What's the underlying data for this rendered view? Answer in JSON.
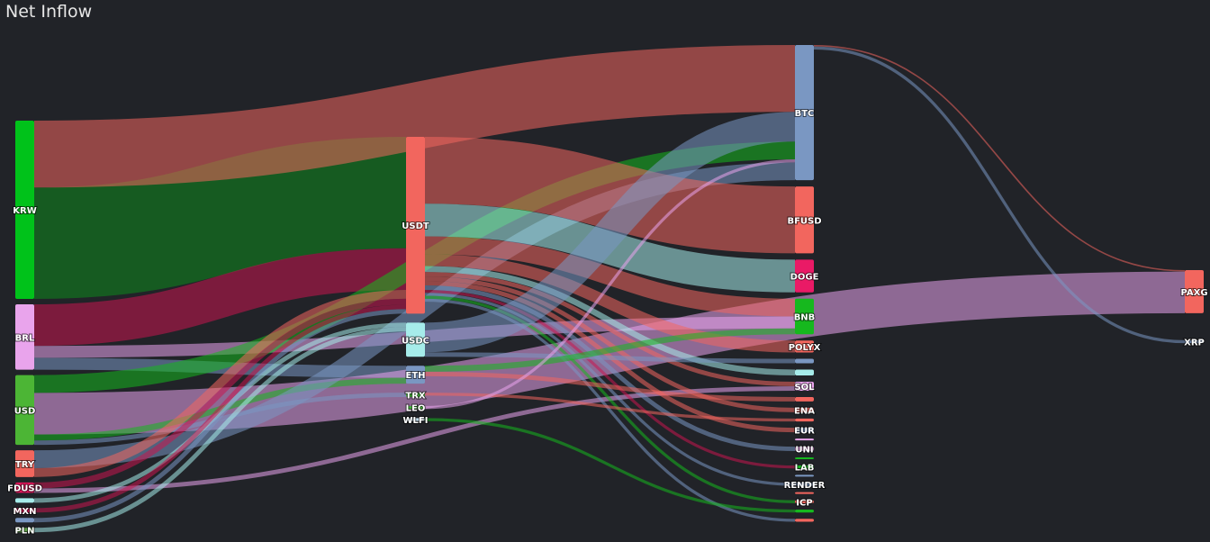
{
  "chart_data": {
    "type": "sankey",
    "title": "Net Inflow",
    "nodes": [
      {
        "id": "KRW",
        "label": "KRW",
        "column": 0,
        "color": "#00c21a"
      },
      {
        "id": "BRL",
        "label": "BRL",
        "column": 0,
        "color": "#e9a4ec"
      },
      {
        "id": "USD",
        "label": "USD",
        "column": 0,
        "color": "#4cb535"
      },
      {
        "id": "TRY",
        "label": "TRY",
        "column": 0,
        "color": "#f2665e"
      },
      {
        "id": "FDUSD",
        "label": "FDUSD",
        "column": 0,
        "color": "#e8155d"
      },
      {
        "id": "UNK_SRC",
        "label": "",
        "column": 0,
        "color": "#a6ecea"
      },
      {
        "id": "MXN",
        "label": "MXN",
        "column": 0,
        "color": "#c8154f"
      },
      {
        "id": "UNK_SRC2",
        "label": "",
        "column": 0,
        "color": "#7a97c2"
      },
      {
        "id": "PLN",
        "label": "PLN",
        "column": 0,
        "color": "#5fa048"
      },
      {
        "id": "USDT",
        "label": "USDT",
        "column": 1,
        "color": "#f2665e"
      },
      {
        "id": "USDC",
        "label": "USDC",
        "column": 1,
        "color": "#a6ecea"
      },
      {
        "id": "ETH",
        "label": "ETH",
        "column": 1,
        "color": "#7a97c2"
      },
      {
        "id": "TRX",
        "label": "TRX",
        "column": 1,
        "color": "#47b03c"
      },
      {
        "id": "LEO",
        "label": "LEO",
        "column": 1,
        "color": "#47b03c"
      },
      {
        "id": "WLFI",
        "label": "WLFI",
        "column": 1,
        "color": "#c6e0f0"
      },
      {
        "id": "BTC",
        "label": "BTC",
        "column": 2,
        "color": "#7a97c2"
      },
      {
        "id": "BFUSD",
        "label": "BFUSD",
        "column": 2,
        "color": "#f2665e"
      },
      {
        "id": "DOGE",
        "label": "DOGE",
        "column": 2,
        "color": "#ea1a66"
      },
      {
        "id": "BNB",
        "label": "BNB",
        "column": 2,
        "color": "#16b81e"
      },
      {
        "id": "POLYX",
        "label": "POLYX",
        "column": 2,
        "color": "#f2665e"
      },
      {
        "id": "C2_A",
        "label": "",
        "column": 2,
        "color": "#7a97c2"
      },
      {
        "id": "C2_B",
        "label": "",
        "column": 2,
        "color": "#a6ecea"
      },
      {
        "id": "SOL",
        "label": "SOL",
        "column": 2,
        "color": "#e9a4ec"
      },
      {
        "id": "C2_C",
        "label": "",
        "column": 2,
        "color": "#f2665e"
      },
      {
        "id": "ENA",
        "label": "ENA",
        "column": 2,
        "color": "#f2665e"
      },
      {
        "id": "C2_D",
        "label": "",
        "column": 2,
        "color": "#f2665e"
      },
      {
        "id": "EUR",
        "label": "EUR",
        "column": 2,
        "color": "#7a97c2"
      },
      {
        "id": "C2_E",
        "label": "",
        "column": 2,
        "color": "#e9a4ec"
      },
      {
        "id": "UNI",
        "label": "UNI",
        "column": 2,
        "color": "#e9a4ec"
      },
      {
        "id": "C2_F",
        "label": "",
        "column": 2,
        "color": "#16b81e"
      },
      {
        "id": "LAB",
        "label": "LAB",
        "column": 2,
        "color": "#16b81e"
      },
      {
        "id": "C2_G",
        "label": "",
        "column": 2,
        "color": "#7a97c2"
      },
      {
        "id": "RENDER",
        "label": "RENDER",
        "column": 2,
        "color": "#7a97c2"
      },
      {
        "id": "C2_H",
        "label": "",
        "column": 2,
        "color": "#f2665e"
      },
      {
        "id": "ICP",
        "label": "ICP",
        "column": 2,
        "color": "#f2665e"
      },
      {
        "id": "C2_I",
        "label": "",
        "column": 2,
        "color": "#16b81e"
      },
      {
        "id": "C2_J",
        "label": "",
        "column": 2,
        "color": "#f2665e"
      },
      {
        "id": "PAXG",
        "label": "PAXG",
        "column": 3,
        "color": "#f2665e"
      },
      {
        "id": "XRP",
        "label": "XRP",
        "column": 3,
        "color": "#7a97c2"
      }
    ],
    "links": [
      {
        "source": "KRW",
        "target": "USDT",
        "value": 75,
        "color": "#0f8a1c"
      },
      {
        "source": "KRW",
        "target": "BTC",
        "value": 45,
        "color": "#f2665e"
      },
      {
        "source": "BRL",
        "target": "USDT",
        "value": 28,
        "color": "#c8154f"
      },
      {
        "source": "BRL",
        "target": "BNB",
        "value": 8,
        "color": "#e9a4ec"
      },
      {
        "source": "BRL",
        "target": "ETH",
        "value": 8,
        "color": "#7a97c2"
      },
      {
        "source": "USD",
        "target": "PAXG",
        "value": 28,
        "color": "#e9a4ec"
      },
      {
        "source": "USD",
        "target": "BTC",
        "value": 12,
        "color": "#16b81e"
      },
      {
        "source": "USD",
        "target": "ETH",
        "value": 4,
        "color": "#16b81e"
      },
      {
        "source": "USD",
        "target": "TRX",
        "value": 3,
        "color": "#7a97c2"
      },
      {
        "source": "TRY",
        "target": "BTC",
        "value": 12,
        "color": "#7a97c2"
      },
      {
        "source": "TRY",
        "target": "USDT",
        "value": 6,
        "color": "#f2665e"
      },
      {
        "source": "FDUSD",
        "target": "USDT",
        "value": 4,
        "color": "#c8154f"
      },
      {
        "source": "FDUSD",
        "target": "SOL",
        "value": 3,
        "color": "#e9a4ec"
      },
      {
        "source": "UNK_SRC",
        "target": "USDC",
        "value": 3,
        "color": "#a6ecea"
      },
      {
        "source": "MXN",
        "target": "USDT",
        "value": 3,
        "color": "#c8154f"
      },
      {
        "source": "UNK_SRC2",
        "target": "USDT",
        "value": 3,
        "color": "#7a97c2"
      },
      {
        "source": "PLN",
        "target": "USDC",
        "value": 3,
        "color": "#a6ecea"
      },
      {
        "source": "USDT",
        "target": "BFUSD",
        "value": 45,
        "color": "#f2665e"
      },
      {
        "source": "USDT",
        "target": "DOGE",
        "value": 22,
        "color": "#a6ecea"
      },
      {
        "source": "USDT",
        "target": "BNB",
        "value": 12,
        "color": "#f2665e"
      },
      {
        "source": "USDT",
        "target": "POLYX",
        "value": 8,
        "color": "#f2665e"
      },
      {
        "source": "USDT",
        "target": "C2_B",
        "value": 4,
        "color": "#a6ecea"
      },
      {
        "source": "USDT",
        "target": "SOL",
        "value": 3,
        "color": "#f2665e"
      },
      {
        "source": "USDT",
        "target": "ENA",
        "value": 3,
        "color": "#f2665e"
      },
      {
        "source": "USDT",
        "target": "EUR",
        "value": 3,
        "color": "#f2665e"
      },
      {
        "source": "USDT",
        "target": "UNI",
        "value": 3,
        "color": "#7a97c2"
      },
      {
        "source": "USDT",
        "target": "LAB",
        "value": 2,
        "color": "#c8154f"
      },
      {
        "source": "USDT",
        "target": "RENDER",
        "value": 2,
        "color": "#7a97c2"
      },
      {
        "source": "USDT",
        "target": "ICP",
        "value": 2,
        "color": "#16b81e"
      },
      {
        "source": "USDT",
        "target": "C2_J",
        "value": 2,
        "color": "#7a97c2"
      },
      {
        "source": "USDC",
        "target": "BTC",
        "value": 20,
        "color": "#7a97c2"
      },
      {
        "source": "USDC",
        "target": "C2_A",
        "value": 3,
        "color": "#7a97c2"
      },
      {
        "source": "ETH",
        "target": "BNB",
        "value": 4,
        "color": "#16b81e"
      },
      {
        "source": "ETH",
        "target": "C2_C",
        "value": 3,
        "color": "#f2665e"
      },
      {
        "source": "TRX",
        "target": "C2_D",
        "value": 2,
        "color": "#f2665e"
      },
      {
        "source": "LEO",
        "target": "BTC",
        "value": 2,
        "color": "#e9a4ec"
      },
      {
        "source": "WLFI",
        "target": "C2_I",
        "value": 2,
        "color": "#16b81e"
      },
      {
        "source": "BTC",
        "target": "PAXG",
        "value": 1,
        "color": "#f2665e"
      },
      {
        "source": "BTC",
        "target": "XRP",
        "value": 2,
        "color": "#7a97c2"
      }
    ]
  }
}
